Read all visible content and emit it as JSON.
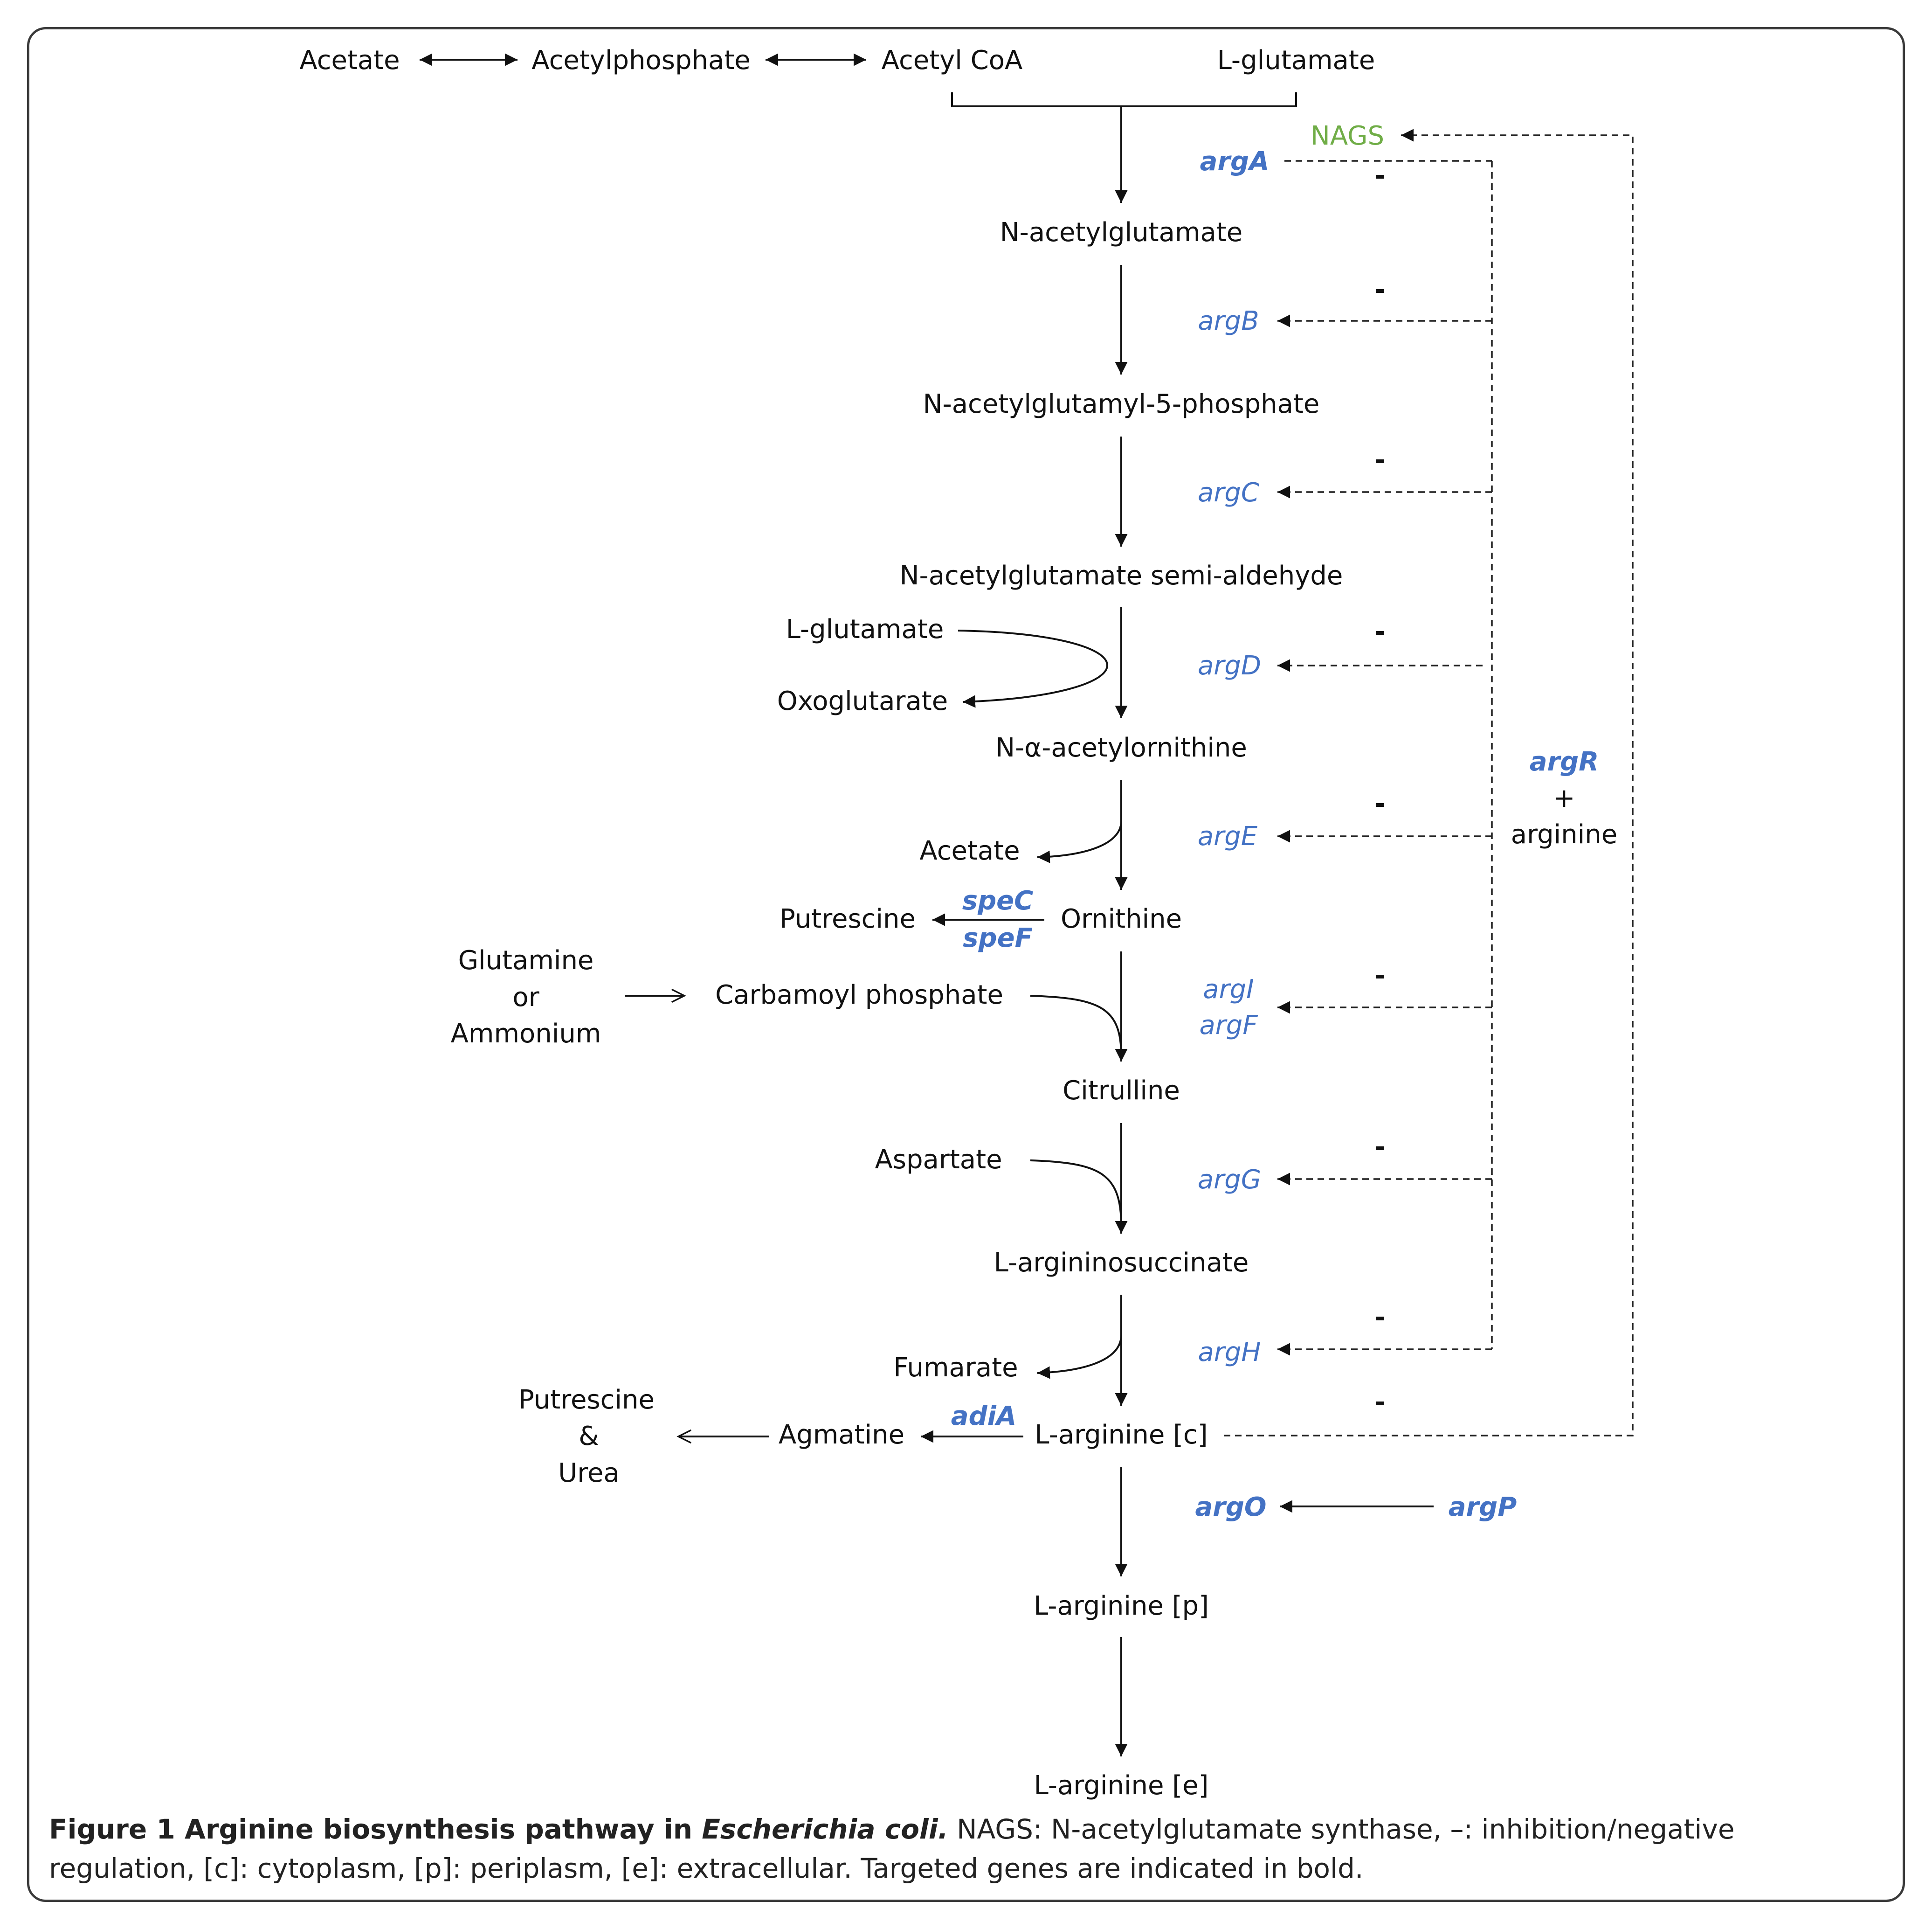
{
  "metabolites": {
    "acetate_top": "Acetate",
    "acetylphosphate": "Acetylphosphate",
    "acetyl_coa": "Acetyl CoA",
    "l_glutamate_top": "L-glutamate",
    "n_acetylglutamate": "N-acetylglutamate",
    "n_acetylglutamyl_5_phosphate": "N-acetylglutamyl-5-phosphate",
    "n_acetylglutamate_semialdehyde": "N-acetylglutamate semi-aldehyde",
    "l_glutamate_side": "L-glutamate",
    "oxoglutarate": "Oxoglutarate",
    "n_alpha_acetylornithine": "N-α-acetylornithine",
    "acetate_side": "Acetate",
    "ornithine": "Ornithine",
    "putrescine_left": "Putrescine",
    "glutamine": "Glutamine",
    "or": "or",
    "ammonium": "Ammonium",
    "carbamoyl_phosphate": "Carbamoyl phosphate",
    "citrulline": "Citrulline",
    "aspartate": "Aspartate",
    "l_argininosuccinate": "L-argininosuccinate",
    "fumarate": "Fumarate",
    "putrescine_bottom": "Putrescine",
    "ampersand": "&",
    "urea": "Urea",
    "agmatine": "Agmatine",
    "l_arginine_c": "L-arginine [c]",
    "l_arginine_p": "L-arginine [p]",
    "l_arginine_e": "L-arginine [e]"
  },
  "genes": {
    "argA": "argA",
    "argB": "argB",
    "argC": "argC",
    "argD": "argD",
    "argE": "argE",
    "speC": "speC",
    "speF": "speF",
    "argI": "argI",
    "argF": "argF",
    "argG": "argG",
    "argH": "argH",
    "adiA": "adiA",
    "argO": "argO",
    "argP": "argP",
    "argR": "argR"
  },
  "regulator": {
    "nags": "NAGS",
    "plus": "+",
    "arginine": "arginine",
    "minus": "-"
  },
  "caption": {
    "title": "Figure 1 Arginine biosynthesis pathway in ",
    "species": "Escherichia coli.",
    "body": " NAGS: N-acetylglutamate synthase, –: inhibition/negative regulation, [c]: cytoplasm, [p]: periplasm, [e]: extracellular. Targeted genes are indicated in bold."
  },
  "colors": {
    "gene_blue": "#4472c4",
    "nags_green": "#70ad47",
    "line": "#111111"
  }
}
